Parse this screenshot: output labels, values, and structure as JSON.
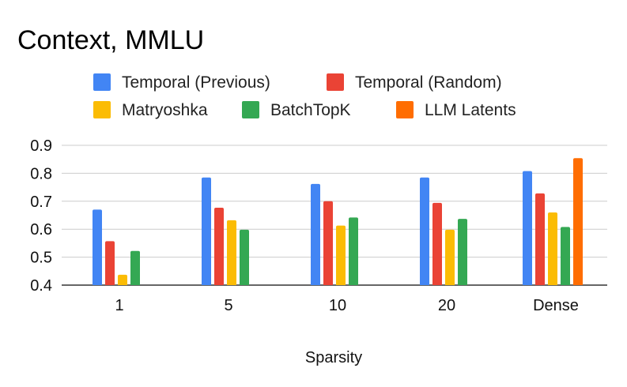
{
  "chart_data": {
    "type": "bar",
    "title": "Context, MMLU",
    "xlabel": "Sparsity",
    "ylabel": "",
    "categories": [
      "1",
      "5",
      "10",
      "20",
      "Dense"
    ],
    "ylim": [
      0.4,
      0.9
    ],
    "yticks": [
      "0.4",
      "0.5",
      "0.6",
      "0.7",
      "0.8",
      "0.9"
    ],
    "grid": true,
    "legend_position": "top",
    "series": [
      {
        "name": "Temporal (Previous)",
        "color": "#4285F4",
        "values": [
          0.67,
          0.785,
          0.762,
          0.785,
          0.808
        ]
      },
      {
        "name": "Temporal (Random)",
        "color": "#EA4335",
        "values": [
          0.557,
          0.677,
          0.7,
          0.694,
          0.728
        ]
      },
      {
        "name": "Matryoshka",
        "color": "#FBBC04",
        "values": [
          0.437,
          0.632,
          0.613,
          0.598,
          0.66
        ]
      },
      {
        "name": "BatchTopK",
        "color": "#34A853",
        "values": [
          0.522,
          0.598,
          0.642,
          0.637,
          0.608
        ]
      },
      {
        "name": "LLM Latents",
        "color": "#FF6D01",
        "values": [
          null,
          null,
          null,
          null,
          0.854
        ]
      }
    ]
  }
}
